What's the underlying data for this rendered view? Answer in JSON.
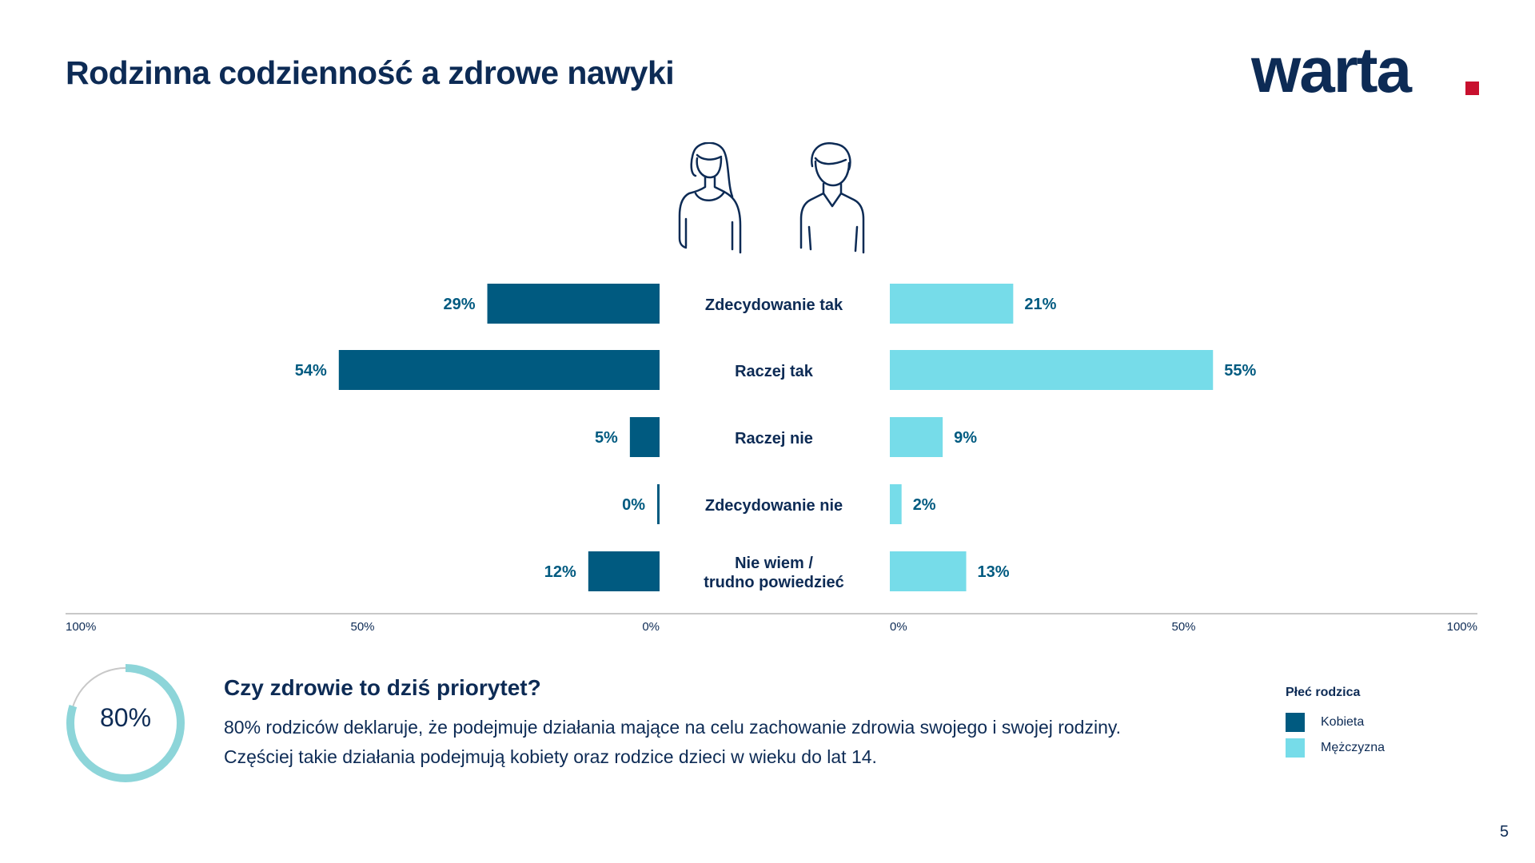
{
  "header": {
    "title": "Rodzinna codzienność a zdrowe nawyki",
    "logo_text": "warta",
    "logo_dot_color": "#c8102e"
  },
  "icons": [
    "woman-icon",
    "man-icon"
  ],
  "chart_data": {
    "type": "bar",
    "orientation": "horizontal-butterfly",
    "categories": [
      "Zdecydowanie tak",
      "Raczej tak",
      "Raczej nie",
      "Zdecydowanie nie",
      "Nie wiem /\ntrudno powiedzieć"
    ],
    "series": [
      {
        "name": "Kobieta",
        "color": "#005a80",
        "values": [
          29,
          54,
          5,
          0,
          12
        ],
        "labels": [
          "29%",
          "54%",
          "5%",
          "0%",
          "12%"
        ]
      },
      {
        "name": "Mężczyzna",
        "color": "#76dce9",
        "values": [
          21,
          55,
          9,
          2,
          13
        ],
        "labels": [
          "21%",
          "55%",
          "9%",
          "2%",
          "13%"
        ]
      }
    ],
    "xlim": [
      0,
      100
    ],
    "left_ticks": [
      "100%",
      "50%",
      "0%"
    ],
    "right_ticks": [
      "0%",
      "50%",
      "100%"
    ],
    "grid": false
  },
  "info": {
    "donut_value": 80,
    "donut_label": "80%",
    "donut_color": "#8dd5d9",
    "title": "Czy zdrowie to dziś priorytet?",
    "line1": "80% rodziców deklaruje, że podejmuje działania mające na celu zachowanie zdrowia swojego i swojej rodziny.",
    "line2": "Częściej takie działania podejmują kobiety oraz rodzice dzieci w wieku do lat 14."
  },
  "legend": {
    "title": "Płeć rodzica",
    "items": [
      {
        "label": "Kobieta",
        "color": "#005a80"
      },
      {
        "label": "Mężczyzna",
        "color": "#76dce9"
      }
    ]
  },
  "page_number": "5"
}
